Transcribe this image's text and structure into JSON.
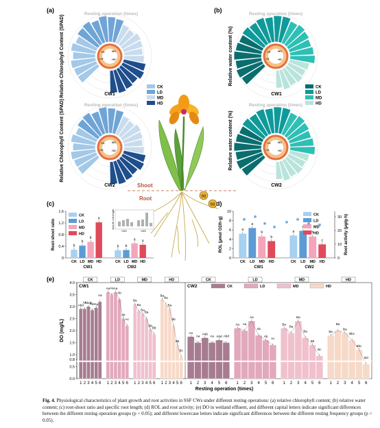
{
  "panels": {
    "a": {
      "label": "(a)",
      "title": "Resting operation (times)",
      "ylabel": "Relative Chlorophyll Content (SPAD)",
      "charts": [
        {
          "name": "CW1"
        },
        {
          "name": "CW2"
        }
      ]
    },
    "b": {
      "label": "(b)",
      "title": "Resting operation (times)",
      "ylabel": "Relative water content (%)",
      "charts": [
        {
          "name": "CW1"
        },
        {
          "name": "CW2"
        }
      ]
    },
    "c": {
      "label": "(c)",
      "ylabel": "Root-shoot ratio",
      "inset_ylabel": "Specific root length",
      "inset_groups": [
        "CW1",
        "CW2"
      ]
    },
    "d": {
      "label": "(d)",
      "ylabel_left": "ROL (μmol O2/h·g)",
      "ylabel_right": "Root activity (μg/g·h)"
    },
    "e": {
      "label": "(e)",
      "ylabel": "DO (mg/L)",
      "xlabel": "Resting operation (times)",
      "legend": [
        "CK",
        "LD",
        "MD",
        "HD"
      ]
    }
  },
  "center": {
    "shoot_label": "Shoot",
    "root_label": "Root",
    "o2_label": "O2"
  },
  "legend_ab": [
    "CK",
    "LD",
    "MD",
    "HD"
  ],
  "colors": {
    "green": {
      "CK": "#0a6e6e",
      "LD": "#0f9a9a",
      "MD": "#2ebfb5",
      "HD": "#b9e4dc"
    },
    "blue": {
      "CK": "#a3c8e8",
      "LD": "#6fa5d6",
      "MD": "#c8dcee",
      "HD": "#1f4e8c"
    },
    "cd": {
      "CK": "#a6d1ef",
      "LD": "#5d9bd5",
      "MD": "#f3a5bb",
      "HD": "#e04a5b"
    },
    "e": {
      "CK": "#a77c90",
      "LD": "#e2a8bb",
      "MD": "#f0c0cd",
      "HD": "#f7d9c8"
    },
    "axis": "#333333"
  },
  "chart_data": [
    {
      "type": "bar",
      "title": "",
      "xlabel": "",
      "ylabel": "Root-shoot ratio",
      "categories": [
        "CK",
        "LD",
        "MD",
        "HD"
      ],
      "groups": [
        "CW1",
        "CW2"
      ],
      "series": [
        {
          "group": "CW1",
          "values": [
            0.28,
            0.42,
            0.55,
            1.22
          ],
          "letters": [
            "b",
            "b",
            "b",
            "a"
          ]
        },
        {
          "group": "CW2",
          "values": [
            0.26,
            0.27,
            0.5,
            0.45
          ],
          "letters": [
            "b",
            "b",
            "a",
            "a"
          ]
        }
      ],
      "ylim": [
        0,
        1.6
      ],
      "yticks": [
        0,
        0.4,
        0.8,
        1.2,
        1.6
      ]
    },
    {
      "type": "bar",
      "title": "",
      "xlabel": "",
      "ylabel": "ROL (μmol O2/h·g)",
      "y2label": "Root activity (μg/g·h)",
      "categories": [
        "CK",
        "LD",
        "MD",
        "HD"
      ],
      "groups": [
        "CW1",
        "CW2"
      ],
      "series": [
        {
          "name": "ROL",
          "group": "CW1",
          "values": [
            5.2,
            6.4,
            4.6,
            3.6
          ],
          "letters": [
            "a",
            "a",
            "b",
            "b"
          ]
        },
        {
          "name": "ROL",
          "group": "CW2",
          "values": [
            4.8,
            5.8,
            4.6,
            2.9
          ],
          "letters": [
            "a",
            "a",
            "b",
            "c"
          ]
        }
      ],
      "ylim": [
        0,
        10
      ],
      "yticks": [
        0,
        2,
        4,
        6,
        8,
        10
      ],
      "y2ticks": [
        0,
        10,
        20,
        30
      ]
    },
    {
      "type": "bar",
      "title": "",
      "xlabel": "Resting operation (times)",
      "ylabel": "DO (mg/L)",
      "ylim": [
        0,
        4.0
      ],
      "yticks": [
        0.0,
        0.5,
        0.8,
        1.0,
        1.5,
        2.0,
        2.5,
        3.0,
        3.5,
        4.0
      ],
      "categories": [
        "1",
        "2",
        "3",
        "4",
        "5",
        "6"
      ],
      "series": [
        {
          "name": "CK",
          "group": "CW1",
          "values": [
            2.9,
            2.9,
            3.0,
            2.85,
            2.95,
            3.2
          ],
          "letters": [
            "Abd",
            "Ab",
            "Abde",
            "Aac",
            "Aa",
            "Aa"
          ]
        },
        {
          "name": "LD",
          "group": "CW1",
          "values": [
            3.6,
            3.5,
            3.6,
            3.3,
            2.5,
            2.2
          ],
          "letters": [
            "Aa",
            "Aa",
            "Aa",
            "Ab",
            "Ab",
            "Ac"
          ]
        },
        {
          "name": "MD",
          "group": "CW1",
          "values": [
            3.1,
            2.8,
            2.7,
            2.5,
            2.05,
            1.85
          ],
          "letters": [
            "Ba",
            "Ba",
            "Ba",
            "Ba",
            "Bb",
            "Bb"
          ]
        },
        {
          "name": "HD",
          "group": "CW1",
          "values": [
            3.3,
            3.1,
            2.9,
            2.2,
            1.4,
            0.9
          ],
          "letters": [
            "Ba",
            "Ba",
            "Ba",
            "Bb",
            "Bb",
            "Bc"
          ]
        },
        {
          "name": "CK",
          "group": "CW2",
          "values": [
            1.75,
            1.5,
            1.7,
            1.5,
            1.6,
            1.5
          ],
          "letters": [
            "Aa",
            "Aa",
            "Aab",
            "Aa",
            "Abd",
            "Abd"
          ]
        },
        {
          "name": "LD",
          "group": "CW2",
          "values": [
            2.1,
            2.0,
            2.4,
            1.8,
            1.6,
            1.4
          ],
          "letters": [
            "Aa",
            "Aa",
            "Aa",
            "Ab",
            "Ab",
            "Ac"
          ]
        },
        {
          "name": "MD",
          "group": "CW2",
          "values": [
            2.1,
            1.9,
            2.4,
            1.7,
            1.4,
            0.95
          ],
          "letters": [
            "Ba",
            "Ba",
            "Ba",
            "Ba",
            "Bb",
            "Bc"
          ]
        },
        {
          "name": "HD",
          "group": "CW2",
          "values": [
            1.8,
            2.0,
            1.9,
            1.6,
            1.2,
            0.6
          ],
          "letters": [
            "Ba",
            "Ba",
            "Ba",
            "Bbc",
            "Bbc",
            "Bd"
          ]
        }
      ],
      "panels": [
        "CW1",
        "CW2"
      ]
    }
  ],
  "caption": {
    "label": "Fig. 4.",
    "text": "Physiological characteristics of plant growth and root activities in SSF CWs under different resting operations: (a) relative chlorophyll content; (b) relative water content; (c) root-shoot ratio and specific root length; (d) ROL and root activity; (e) DO in wetland effluent, and different capital letters indicate significant differences between the different resting operation groups (p < 0.05); and different lowercase letters indicate significant differences between the different resting frequency groups (p < 0.05)."
  }
}
